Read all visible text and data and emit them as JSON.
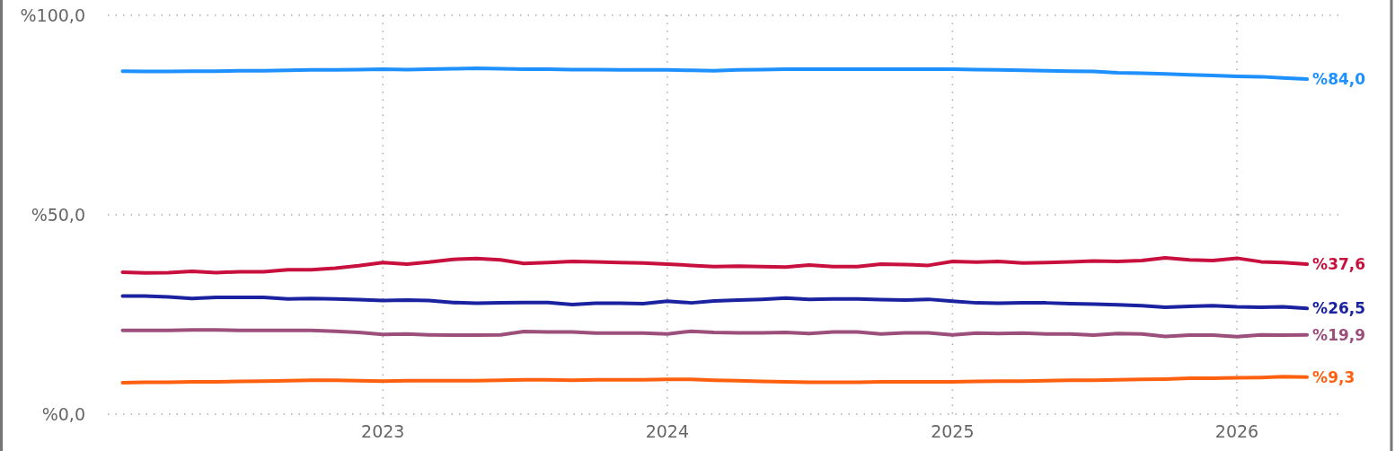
{
  "chart_data": {
    "type": "line",
    "x": [
      "2022-02",
      "2022-03",
      "2022-04",
      "2022-05",
      "2022-06",
      "2022-07",
      "2022-08",
      "2022-09",
      "2022-10",
      "2022-11",
      "2022-12",
      "2023-01",
      "2023-02",
      "2023-03",
      "2023-04",
      "2023-05",
      "2023-06",
      "2023-07",
      "2023-08",
      "2023-09",
      "2023-10",
      "2023-11",
      "2023-12",
      "2024-01",
      "2024-02",
      "2024-03",
      "2024-04",
      "2024-05",
      "2024-06",
      "2024-07",
      "2024-08",
      "2024-09",
      "2024-10",
      "2024-11",
      "2024-12",
      "2025-01",
      "2025-02",
      "2025-03",
      "2025-04",
      "2025-05",
      "2025-06",
      "2025-07",
      "2025-08",
      "2025-09",
      "2025-10",
      "2025-11",
      "2025-12",
      "2026-01",
      "2026-02",
      "2026-03",
      "2026-04"
    ],
    "xlim": [
      "2022-01-13",
      "2026-05-17"
    ],
    "xticks": [
      {
        "value": "2023",
        "label": "2023"
      },
      {
        "value": "2024",
        "label": "2024"
      },
      {
        "value": "2025",
        "label": "2025"
      },
      {
        "value": "2026",
        "label": "2026"
      }
    ],
    "ylim": [
      0,
      100
    ],
    "yticks": [
      {
        "value": 0,
        "label": "%0,0"
      },
      {
        "value": 50,
        "label": "%50,0"
      },
      {
        "value": 100,
        "label": "%100,0"
      }
    ],
    "grid": true,
    "line_style": "solid",
    "marker": "none",
    "series": [
      {
        "color": "#1e90ff",
        "values": [
          86.0,
          85.9,
          85.9,
          86.0,
          86.0,
          86.1,
          86.1,
          86.2,
          86.3,
          86.3,
          86.4,
          86.5,
          86.4,
          86.5,
          86.6,
          86.7,
          86.6,
          86.5,
          86.5,
          86.4,
          86.4,
          86.3,
          86.3,
          86.3,
          86.2,
          86.1,
          86.3,
          86.4,
          86.5,
          86.5,
          86.5,
          86.5,
          86.5,
          86.5,
          86.5,
          86.5,
          86.4,
          86.3,
          86.2,
          86.1,
          86.0,
          85.9,
          85.6,
          85.5,
          85.3,
          85.1,
          84.9,
          84.7,
          84.6,
          84.3,
          84.0
        ],
        "value_labels": [
          null,
          null,
          null,
          null,
          null,
          null,
          null,
          null,
          null,
          null,
          null,
          null,
          null,
          null,
          null,
          null,
          null,
          null,
          null,
          null,
          null,
          null,
          null,
          null,
          null,
          null,
          null,
          null,
          null,
          null,
          null,
          null,
          null,
          null,
          null,
          null,
          null,
          null,
          null,
          null,
          null,
          null,
          null,
          null,
          null,
          null,
          null,
          null,
          null,
          null,
          "%84,0"
        ]
      },
      {
        "color": "#c8103e",
        "values": [
          35.6,
          35.4,
          35.5,
          35.8,
          35.5,
          35.7,
          35.7,
          36.2,
          36.2,
          36.6,
          37.2,
          38.0,
          37.6,
          38.1,
          38.8,
          39.0,
          38.7,
          37.8,
          38.0,
          38.3,
          38.2,
          38.0,
          37.9,
          37.6,
          37.3,
          37.0,
          37.1,
          37.0,
          36.9,
          37.4,
          37.0,
          37.0,
          37.6,
          37.5,
          37.3,
          38.3,
          38.1,
          38.3,
          37.9,
          38.0,
          38.2,
          38.4,
          38.3,
          38.5,
          39.2,
          38.7,
          38.5,
          39.1,
          38.2,
          38.0,
          37.6
        ],
        "value_labels": [
          null,
          null,
          null,
          null,
          null,
          null,
          null,
          null,
          null,
          null,
          null,
          null,
          null,
          null,
          null,
          null,
          null,
          null,
          null,
          null,
          null,
          null,
          null,
          null,
          null,
          null,
          null,
          null,
          null,
          null,
          null,
          null,
          null,
          null,
          null,
          null,
          null,
          null,
          null,
          null,
          null,
          null,
          null,
          null,
          null,
          null,
          null,
          null,
          null,
          null,
          "%37,6"
        ]
      },
      {
        "color": "#1a22a0",
        "values": [
          29.6,
          29.6,
          29.4,
          29.0,
          29.3,
          29.3,
          29.3,
          28.9,
          29.0,
          28.9,
          28.7,
          28.5,
          28.6,
          28.5,
          28.0,
          27.8,
          27.9,
          28.0,
          28.0,
          27.5,
          27.8,
          27.8,
          27.7,
          28.3,
          27.9,
          28.4,
          28.6,
          28.8,
          29.1,
          28.8,
          28.9,
          28.9,
          28.7,
          28.6,
          28.8,
          28.3,
          27.9,
          27.8,
          27.9,
          27.9,
          27.7,
          27.6,
          27.4,
          27.2,
          26.8,
          27.0,
          27.2,
          26.9,
          26.8,
          26.9,
          26.5
        ],
        "value_labels": [
          null,
          null,
          null,
          null,
          null,
          null,
          null,
          null,
          null,
          null,
          null,
          null,
          null,
          null,
          null,
          null,
          null,
          null,
          null,
          null,
          null,
          null,
          null,
          null,
          null,
          null,
          null,
          null,
          null,
          null,
          null,
          null,
          null,
          null,
          null,
          null,
          null,
          null,
          null,
          null,
          null,
          null,
          null,
          null,
          null,
          null,
          null,
          null,
          null,
          null,
          "%26,5"
        ]
      },
      {
        "color": "#9b4f7a",
        "values": [
          21.0,
          21.0,
          21.0,
          21.1,
          21.1,
          21.0,
          21.0,
          21.0,
          21.0,
          20.8,
          20.5,
          20.0,
          20.1,
          19.9,
          19.8,
          19.8,
          19.9,
          20.7,
          20.6,
          20.6,
          20.3,
          20.3,
          20.3,
          20.1,
          20.8,
          20.5,
          20.4,
          20.4,
          20.5,
          20.2,
          20.6,
          20.6,
          20.1,
          20.4,
          20.4,
          19.9,
          20.3,
          20.2,
          20.3,
          20.1,
          20.1,
          19.8,
          20.2,
          20.1,
          19.5,
          19.8,
          19.8,
          19.4,
          19.9,
          19.8,
          19.9
        ],
        "value_labels": [
          null,
          null,
          null,
          null,
          null,
          null,
          null,
          null,
          null,
          null,
          null,
          null,
          null,
          null,
          null,
          null,
          null,
          null,
          null,
          null,
          null,
          null,
          null,
          null,
          null,
          null,
          null,
          null,
          null,
          null,
          null,
          null,
          null,
          null,
          null,
          null,
          null,
          null,
          null,
          null,
          null,
          null,
          null,
          null,
          null,
          null,
          null,
          null,
          null,
          null,
          "%19,9"
        ]
      },
      {
        "color": "#ff6010",
        "values": [
          7.9,
          8.0,
          8.0,
          8.1,
          8.1,
          8.2,
          8.3,
          8.4,
          8.5,
          8.5,
          8.4,
          8.3,
          8.4,
          8.4,
          8.4,
          8.4,
          8.5,
          8.6,
          8.6,
          8.5,
          8.6,
          8.6,
          8.6,
          8.7,
          8.7,
          8.5,
          8.4,
          8.2,
          8.1,
          8.0,
          8.0,
          8.0,
          8.1,
          8.1,
          8.1,
          8.1,
          8.2,
          8.3,
          8.3,
          8.4,
          8.5,
          8.5,
          8.6,
          8.7,
          8.8,
          9.0,
          9.0,
          9.1,
          9.2,
          9.4,
          9.3
        ],
        "value_labels": [
          null,
          null,
          null,
          null,
          null,
          null,
          null,
          null,
          null,
          null,
          null,
          null,
          null,
          null,
          null,
          null,
          null,
          null,
          null,
          null,
          null,
          null,
          null,
          null,
          null,
          null,
          null,
          null,
          null,
          null,
          null,
          null,
          null,
          null,
          null,
          null,
          null,
          null,
          null,
          null,
          null,
          null,
          null,
          null,
          null,
          null,
          null,
          null,
          null,
          null,
          "%9,3"
        ]
      }
    ]
  }
}
